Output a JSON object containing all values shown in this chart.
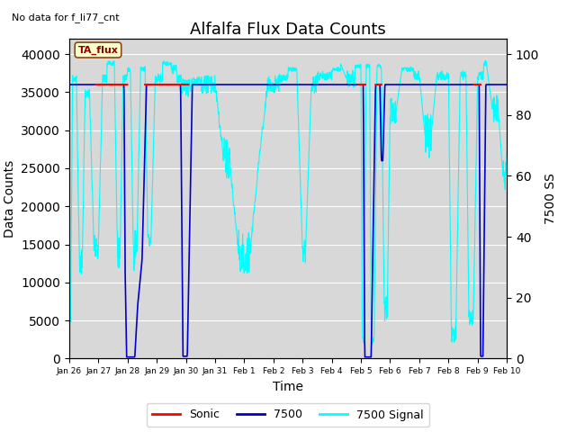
{
  "title": "Alfalfa Flux Data Counts",
  "top_left_note": "No data for f_li77_cnt",
  "ta_flux_label": "TA_flux",
  "xlabel": "Time",
  "ylabel_left": "Data Counts",
  "ylabel_right": "7500 SS",
  "ylim_left": [
    0,
    42000
  ],
  "ylim_right": [
    0,
    105
  ],
  "yticks_left": [
    0,
    5000,
    10000,
    15000,
    20000,
    25000,
    30000,
    35000,
    40000
  ],
  "yticks_right": [
    0,
    20,
    40,
    60,
    80,
    100
  ],
  "xtick_labels": [
    "Jan 26",
    "Jan 27",
    "Jan 28",
    "Jan 29",
    "Jan 30",
    "Jan 31",
    "Feb 1",
    "Feb 2",
    "Feb 3",
    "Feb 4",
    "Feb 5",
    "Feb 6",
    "Feb 7",
    "Feb 8",
    "Feb 9",
    "Feb 10"
  ],
  "sonic_color": "#ff0000",
  "blue7500_color": "#0000cc",
  "cyan_color": "#00ffff",
  "background_color": "#d8d8d8",
  "legend_items": [
    "Sonic",
    "7500",
    "7500 Signal"
  ],
  "title_fontsize": 13,
  "axis_label_fontsize": 10,
  "n_pts": 1500,
  "total_days": 15
}
